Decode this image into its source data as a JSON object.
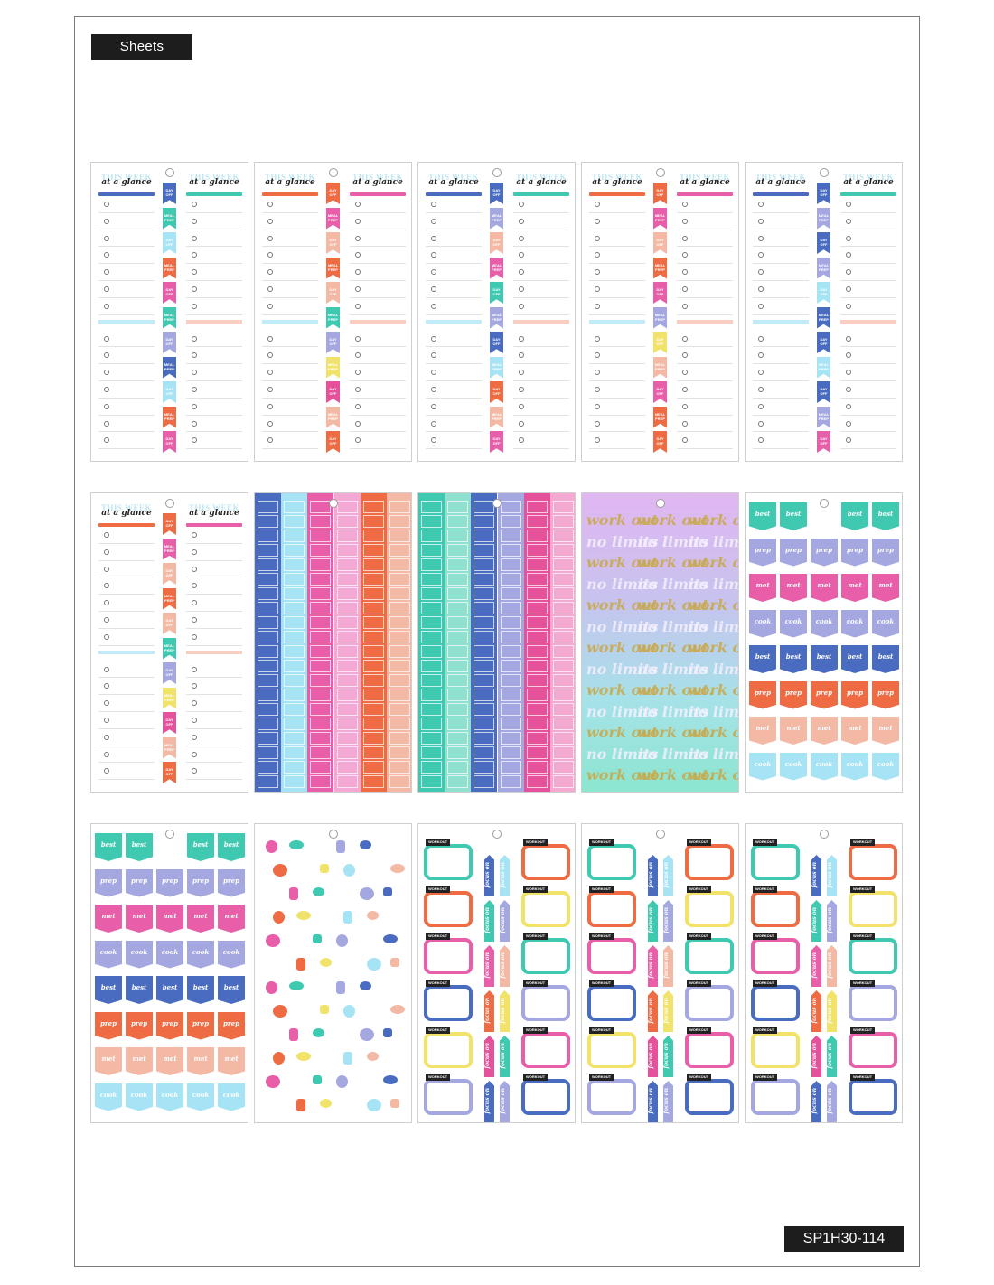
{
  "header": {
    "label": "Sheets"
  },
  "footer": {
    "sku": "SP1H30-114"
  },
  "planner_text": {
    "title": "THIS WEEK",
    "script": "at a glance",
    "day_off": "DAY OFF",
    "meal_prep": "MEAL PREP"
  },
  "badges": {
    "personal_best": "best",
    "meal_prep": "prep",
    "goal_met": "met",
    "batch_cook": "cook"
  },
  "workout": {
    "tab": "WORKOUT",
    "focus": "focus on",
    "phrase_a": "work out.",
    "phrase_b": "no limits"
  },
  "colors": {
    "blue": "#4a6cc0",
    "teal": "#3fc9b0",
    "orange": "#ee6b43",
    "pink": "#e85ea9",
    "lavender": "#a5a8e0",
    "peach": "#f3b9a5",
    "lightblue": "#a6e3f5",
    "yellow": "#f1e36a",
    "magenta": "#e6519c"
  }
}
